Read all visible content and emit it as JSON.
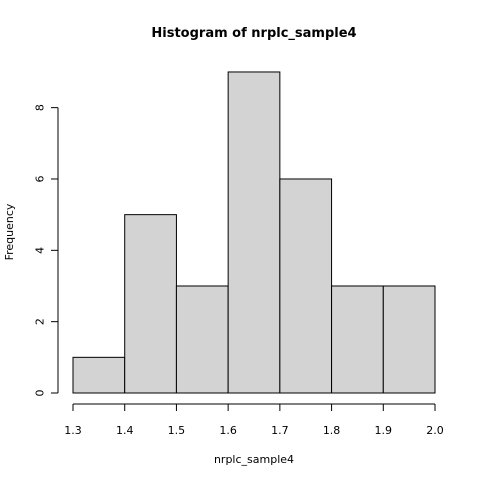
{
  "chart_data": {
    "type": "bar",
    "subtype": "histogram",
    "title": "Histogram of nrplc_sample4",
    "xlabel": "nrplc_sample4",
    "ylabel": "Frequency",
    "bins": [
      {
        "from": 1.3,
        "to": 1.4,
        "count": 1
      },
      {
        "from": 1.4,
        "to": 1.5,
        "count": 5
      },
      {
        "from": 1.5,
        "to": 1.6,
        "count": 3
      },
      {
        "from": 1.6,
        "to": 1.7,
        "count": 9
      },
      {
        "from": 1.7,
        "to": 1.8,
        "count": 6
      },
      {
        "from": 1.8,
        "to": 1.9,
        "count": 3
      },
      {
        "from": 1.9,
        "to": 2.0,
        "count": 3
      }
    ],
    "xlim": [
      1.3,
      2.0
    ],
    "ylim": [
      0,
      9
    ],
    "xticks": [
      1.3,
      1.4,
      1.5,
      1.6,
      1.7,
      1.8,
      1.9,
      2.0
    ],
    "xtick_labels": [
      "1.3",
      "1.4",
      "1.5",
      "1.6",
      "1.7",
      "1.8",
      "1.9",
      "2.0"
    ],
    "yticks": [
      0,
      2,
      4,
      6,
      8
    ],
    "ytick_labels": [
      "0",
      "2",
      "4",
      "6",
      "8"
    ],
    "grid": false,
    "legend": "none",
    "colors": {
      "bar_fill": "#d3d3d3",
      "bar_stroke": "#000000",
      "axis": "#000000",
      "background": "#ffffff"
    }
  }
}
